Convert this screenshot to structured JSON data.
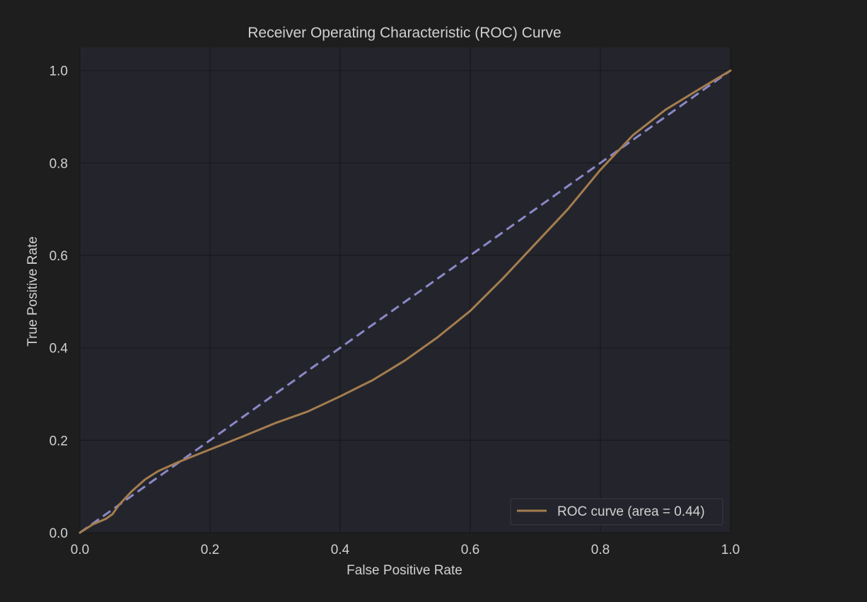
{
  "figure": {
    "background": "#1e1e1e",
    "plot_background": "#24252c",
    "grid_color": "#17181c",
    "text_color": "#d0d0d0"
  },
  "chart_data": {
    "type": "line",
    "title": "Receiver Operating Characteristic (ROC) Curve",
    "xlabel": "False Positive Rate",
    "ylabel": "True Positive Rate",
    "xlim": [
      0.0,
      1.0
    ],
    "ylim": [
      0.0,
      1.05
    ],
    "xticks": [
      0.0,
      0.2,
      0.4,
      0.6,
      0.8,
      1.0
    ],
    "xtick_labels": [
      "0.0",
      "0.2",
      "0.4",
      "0.6",
      "0.8",
      "1.0"
    ],
    "yticks": [
      0.0,
      0.2,
      0.4,
      0.6,
      0.8,
      1.0
    ],
    "ytick_labels": [
      "0.0",
      "0.2",
      "0.4",
      "0.6",
      "0.8",
      "1.0"
    ],
    "grid": true,
    "legend_position": "lower-right",
    "series": [
      {
        "name": "ROC curve (area = 0.44)",
        "color": "#a57d4f",
        "style": "solid",
        "x": [
          0.0,
          0.02,
          0.04,
          0.05,
          0.06,
          0.08,
          0.1,
          0.12,
          0.15,
          0.2,
          0.25,
          0.3,
          0.35,
          0.4,
          0.45,
          0.5,
          0.55,
          0.6,
          0.65,
          0.7,
          0.75,
          0.8,
          0.85,
          0.9,
          0.95,
          1.0
        ],
        "y": [
          0.0,
          0.018,
          0.03,
          0.04,
          0.06,
          0.09,
          0.115,
          0.133,
          0.152,
          0.18,
          0.208,
          0.237,
          0.262,
          0.295,
          0.33,
          0.373,
          0.423,
          0.48,
          0.55,
          0.625,
          0.7,
          0.785,
          0.86,
          0.915,
          0.958,
          1.0
        ]
      },
      {
        "name": "",
        "color": "#8b88c8",
        "style": "dashed",
        "x": [
          0.0,
          1.0
        ],
        "y": [
          0.0,
          1.0
        ]
      }
    ]
  }
}
